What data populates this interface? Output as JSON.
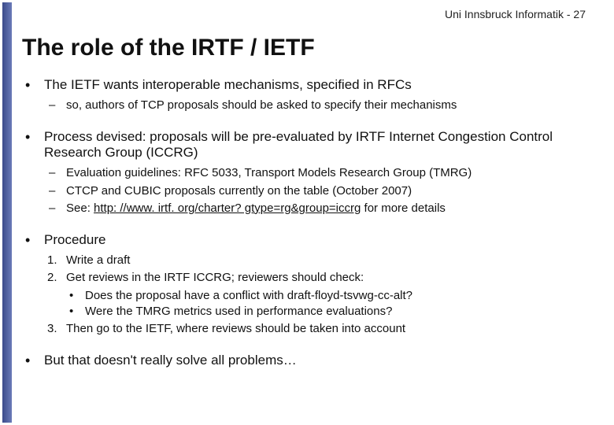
{
  "header": {
    "org": "Uni Innsbruck Informatik",
    "sep": " - ",
    "page": "27"
  },
  "title": "The role of the IRTF / IETF",
  "bullet1": {
    "text": "The IETF wants interoperable mechanisms, specified in RFCs",
    "sub1": "so, authors of TCP proposals should be asked to specify their mechanisms"
  },
  "bullet2": {
    "text": "Process devised: proposals will be pre-evaluated by IRTF Internet Congestion Control Research Group (ICCRG)",
    "sub1": "Evaluation guidelines: RFC 5033, Transport Models Research Group (TMRG)",
    "sub2": "CTCP and CUBIC proposals currently on the table (October 2007)",
    "sub3_pre": "See: ",
    "sub3_link": "http: //www. irtf. org/charter? gtype=rg&group=iccrg",
    "sub3_post": " for more details"
  },
  "bullet3": {
    "text": "Procedure",
    "n1": "Write a draft",
    "n2": "Get reviews in the IRTF ICCRG; reviewers should check:",
    "n2a": "Does the proposal have a conflict with  draft-floyd-tsvwg-cc-alt?",
    "n2b": "Were the TMRG metrics used in performance evaluations?",
    "n3": "Then go to the IETF, where reviews should be taken into account"
  },
  "bullet4": {
    "text": "But that doesn't really solve all problems…"
  },
  "style": {
    "left_stripe_gradient": [
      "#3a4a8a",
      "#6a7ab8"
    ],
    "background": "#ffffff",
    "title_font": "Comic Sans MS",
    "title_fontsize_pt": 22,
    "body_font": "Trebuchet MS",
    "body_fontsize_pt": 13,
    "sub_fontsize_pt": 11,
    "text_color": "#111111"
  }
}
